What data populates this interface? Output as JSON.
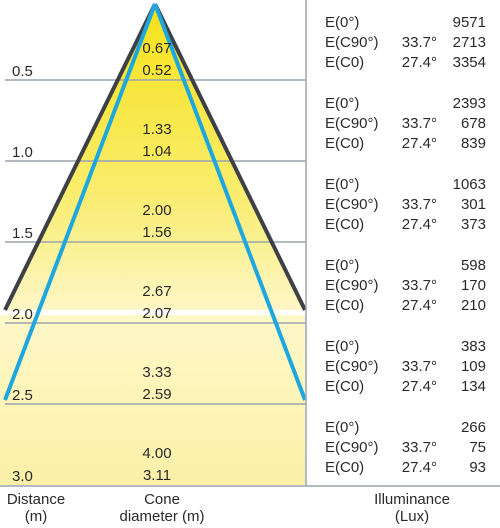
{
  "distances": [
    "0.5",
    "1.0",
    "1.5",
    "2.0",
    "2.5",
    "3.0"
  ],
  "cone_c90": [
    "0.67",
    "1.33",
    "2.00",
    "2.67",
    "3.33",
    "4.00"
  ],
  "cone_c0": [
    "0.52",
    "1.04",
    "1.56",
    "2.07",
    "2.59",
    "3.11"
  ],
  "illuminance": [
    {
      "e0_label": "E(0°)",
      "e0": "9571",
      "c90_label": "E(C90°)",
      "c90_angle": "33.7°",
      "c90": "2713",
      "c0_label": "E(C0)",
      "c0_angle": "27.4°",
      "c0": "3354"
    },
    {
      "e0_label": "E(0°)",
      "e0": "2393",
      "c90_label": "E(C90°)",
      "c90_angle": "33.7°",
      "c90": "678",
      "c0_label": "E(C0)",
      "c0_angle": "27.4°",
      "c0": "839"
    },
    {
      "e0_label": "E(0°)",
      "e0": "1063",
      "c90_label": "E(C90°)",
      "c90_angle": "33.7°",
      "c90": "301",
      "c0_label": "E(C0)",
      "c0_angle": "27.4°",
      "c0": "373"
    },
    {
      "e0_label": "E(0°)",
      "e0": "598",
      "c90_label": "E(C90°)",
      "c90_angle": "33.7°",
      "c90": "170",
      "c0_label": "E(C0)",
      "c0_angle": "27.4°",
      "c0": "210"
    },
    {
      "e0_label": "E(0°)",
      "e0": "383",
      "c90_label": "E(C90°)",
      "c90_angle": "33.7°",
      "c90": "109",
      "c0_label": "E(C0)",
      "c0_angle": "27.4°",
      "c0": "134"
    },
    {
      "e0_label": "E(0°)",
      "e0": "266",
      "c90_label": "E(C90°)",
      "c90_angle": "33.7°",
      "c90": "75",
      "c0_label": "E(C0)",
      "c0_angle": "27.4°",
      "c0": "93"
    }
  ],
  "footer": {
    "distance_line1": "Distance",
    "distance_line2": "(m)",
    "cone_line1": "Cone",
    "cone_line2": "diameter (m)",
    "illum_line1": "Illuminance",
    "illum_line2": "(Lux)"
  },
  "colors": {
    "c90_cone_line": "#3d4147",
    "c0_cone_line": "#1ea7de",
    "grid": "#9aa3ad",
    "fill_light": "#fbf3b2",
    "fill_bright": "#f7e21a"
  }
}
